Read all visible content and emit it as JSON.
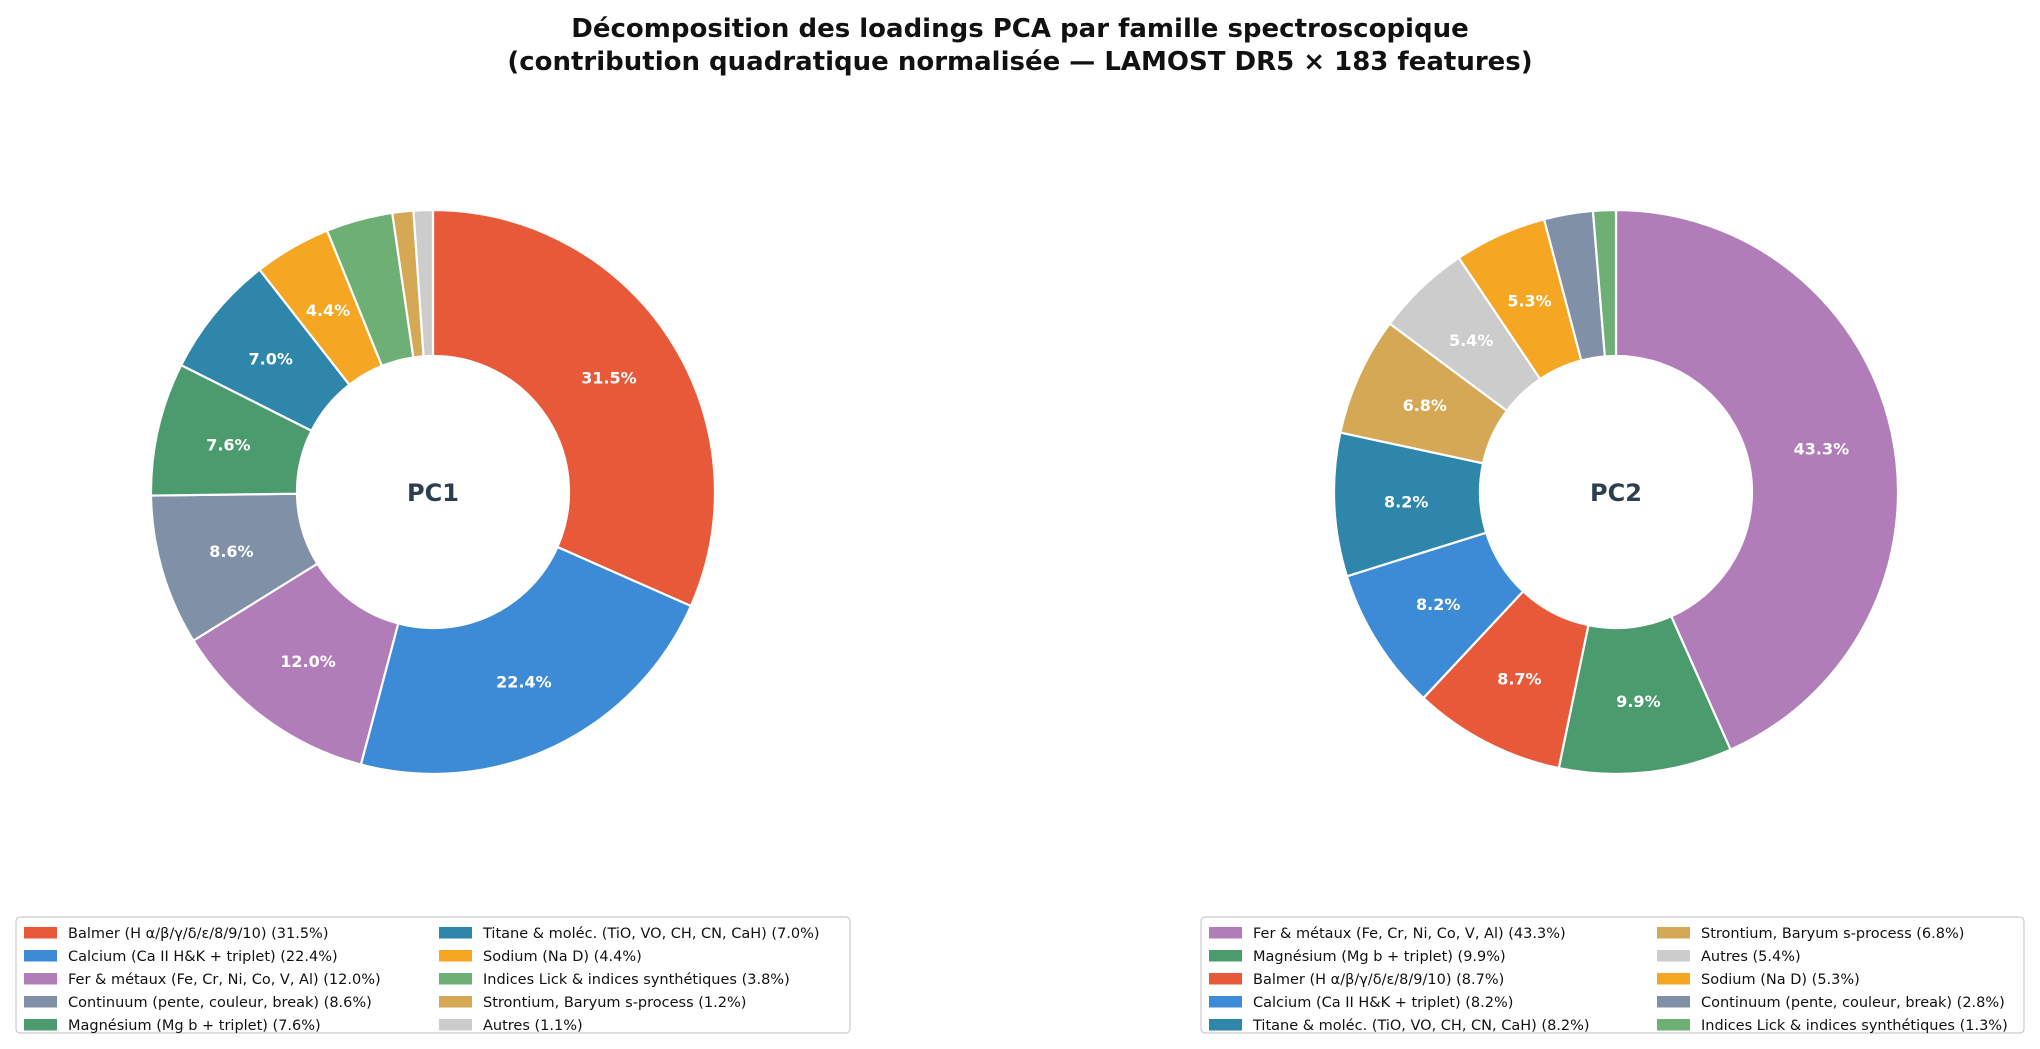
{
  "figure": {
    "title_line1": "Décomposition des loadings PCA par famille spectroscopique",
    "title_line2": "(contribution quadratique normalisée — LAMOST DR5 × 183 features)"
  },
  "chart_data": [
    {
      "type": "pie",
      "donut": true,
      "center_label": "PC1",
      "start_angle_deg": 90,
      "direction": "clockwise",
      "label_threshold_pct": 4,
      "slices": [
        {
          "name": "Balmer (H α/β/γ/δ/ε/8/9/10) (31.5%)",
          "value": 31.5,
          "label": "31.5%",
          "color": "#e8593a"
        },
        {
          "name": "Calcium (Ca II H&K + triplet) (22.4%)",
          "value": 22.4,
          "label": "22.4%",
          "color": "#3d8bd6"
        },
        {
          "name": "Fer & métaux (Fe, Cr, Ni, Co, V, Al) (12.0%)",
          "value": 12.0,
          "label": "12.0%",
          "color": "#b07db8"
        },
        {
          "name": "Continuum (pente, couleur, break) (8.6%)",
          "value": 8.6,
          "label": "8.6%",
          "color": "#8090a6"
        },
        {
          "name": "Magnésium (Mg b + triplet) (7.6%)",
          "value": 7.6,
          "label": "7.6%",
          "color": "#4c9b6e"
        },
        {
          "name": "Titane & moléc. (TiO, VO, CH, CN, CaH) (7.0%)",
          "value": 7.0,
          "label": "7.0%",
          "color": "#2e86ab"
        },
        {
          "name": "Sodium (Na D) (4.4%)",
          "value": 4.4,
          "label": "4.4%",
          "color": "#f5a623"
        },
        {
          "name": "Indices Lick & indices synthétiques (3.8%)",
          "value": 3.8,
          "label": "3.8%",
          "color": "#6daf74"
        },
        {
          "name": "Strontium, Baryum s-process (1.2%)",
          "value": 1.2,
          "label": "1.2%",
          "color": "#d4a854"
        },
        {
          "name": "Autres (1.1%)",
          "value": 1.1,
          "label": "1.1%",
          "color": "#cccccc"
        }
      ],
      "legend": {
        "placement": "lower-left",
        "columns": 2
      }
    },
    {
      "type": "pie",
      "donut": true,
      "center_label": "PC2",
      "start_angle_deg": 90,
      "direction": "clockwise",
      "label_threshold_pct": 4,
      "slices": [
        {
          "name": "Fer & métaux (Fe, Cr, Ni, Co, V, Al) (43.3%)",
          "value": 43.3,
          "label": "43.3%",
          "color": "#b07db8"
        },
        {
          "name": "Magnésium (Mg b + triplet) (9.9%)",
          "value": 9.9,
          "label": "9.9%",
          "color": "#4c9b6e"
        },
        {
          "name": "Balmer (H α/β/γ/δ/ε/8/9/10) (8.7%)",
          "value": 8.7,
          "label": "8.7%",
          "color": "#e8593a"
        },
        {
          "name": "Calcium (Ca II H&K + triplet) (8.2%)",
          "value": 8.2,
          "label": "8.2%",
          "color": "#3d8bd6"
        },
        {
          "name": "Titane & moléc. (TiO, VO, CH, CN, CaH) (8.2%)",
          "value": 8.2,
          "label": "8.2%",
          "color": "#2e86ab"
        },
        {
          "name": "Strontium, Baryum s-process (6.8%)",
          "value": 6.8,
          "label": "6.8%",
          "color": "#d4a854"
        },
        {
          "name": "Autres (5.4%)",
          "value": 5.4,
          "label": "5.4%",
          "color": "#cccccc"
        },
        {
          "name": "Sodium (Na D) (5.3%)",
          "value": 5.3,
          "label": "5.3%",
          "color": "#f5a623"
        },
        {
          "name": "Continuum (pente, couleur, break) (2.8%)",
          "value": 2.8,
          "label": "2.8%",
          "color": "#8090a6"
        },
        {
          "name": "Indices Lick & indices synthétiques (1.3%)",
          "value": 1.3,
          "label": "1.3%",
          "color": "#6daf74"
        }
      ],
      "legend": {
        "placement": "lower-right",
        "columns": 2
      }
    }
  ]
}
